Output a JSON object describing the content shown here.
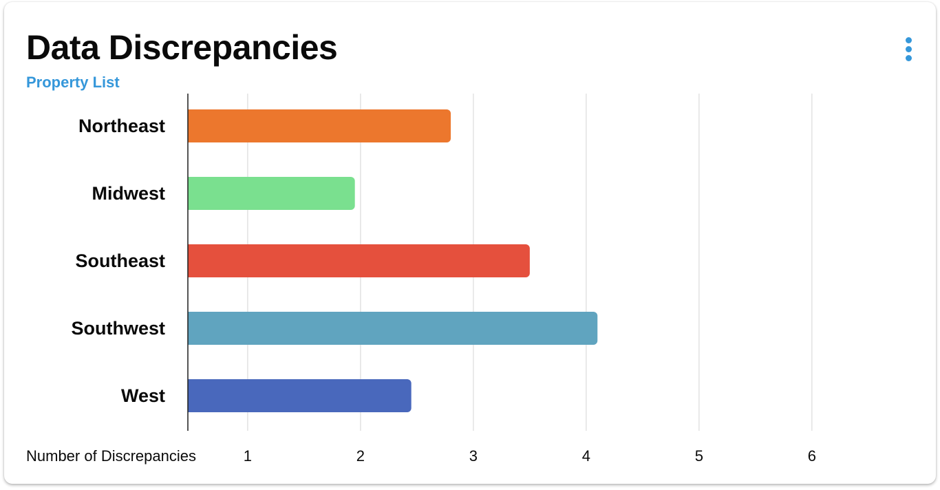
{
  "card": {
    "title": "Data Discrepancies",
    "subtitle": "Property List",
    "menu_icon": "more-vertical-icon"
  },
  "chart_data": {
    "type": "bar",
    "orientation": "horizontal",
    "categories": [
      "Northeast",
      "Midwest",
      "Southeast",
      "Southwest",
      "West"
    ],
    "values": [
      2.8,
      1.95,
      3.5,
      4.1,
      2.45
    ],
    "colors": [
      "#ec772d",
      "#7ae08f",
      "#e5503d",
      "#60a4bf",
      "#4968bc"
    ],
    "xlabel": "Number of Discrepancies",
    "xticks": [
      1,
      2,
      3,
      4,
      5,
      6
    ],
    "xlim": [
      0.47,
      6.8
    ],
    "grid": true
  }
}
